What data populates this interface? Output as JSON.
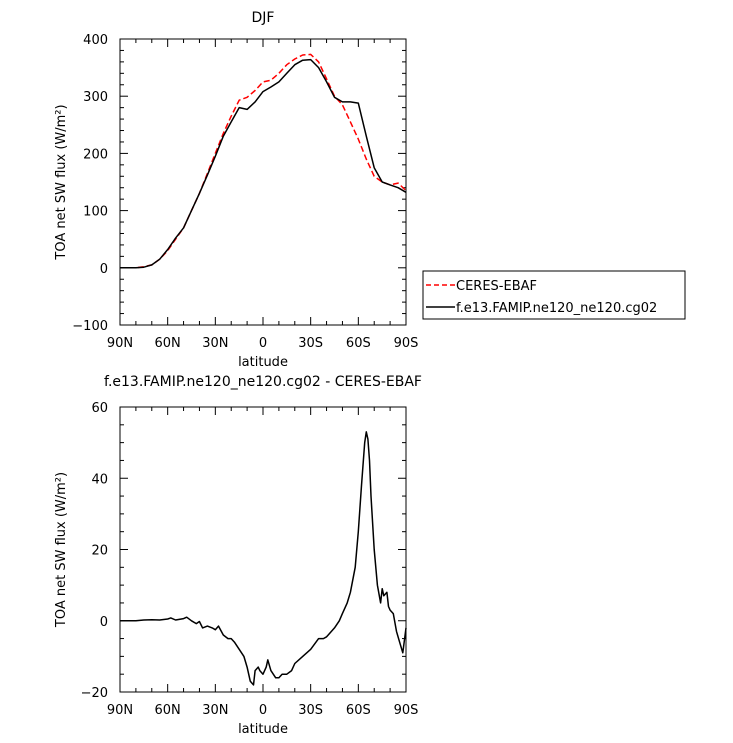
{
  "chart_data": [
    {
      "type": "line",
      "title": "DJF",
      "xlabel": "latitude",
      "ylabel": "TOA net SW flux (W/m²)",
      "xlim": [
        90,
        -90
      ],
      "ylim": [
        -100,
        400
      ],
      "x_ticks": [
        {
          "value": 90,
          "label": "90N"
        },
        {
          "value": 60,
          "label": "60N"
        },
        {
          "value": 30,
          "label": "30N"
        },
        {
          "value": 0,
          "label": "0"
        },
        {
          "value": -30,
          "label": "30S"
        },
        {
          "value": -60,
          "label": "60S"
        },
        {
          "value": -90,
          "label": "90S"
        }
      ],
      "y_ticks": [
        -100,
        0,
        100,
        200,
        300,
        400
      ],
      "legend_position": "right, outside plot",
      "series": [
        {
          "name": "CERES-EBAF",
          "color": "#ff0000",
          "dash": "dashed",
          "x": [
            90,
            85,
            80,
            75,
            70,
            65,
            60,
            55,
            50,
            45,
            40,
            35,
            30,
            25,
            20,
            15,
            10,
            5,
            0,
            -5,
            -10,
            -15,
            -20,
            -25,
            -30,
            -35,
            -40,
            -45,
            -50,
            -55,
            -60,
            -65,
            -70,
            -75,
            -80,
            -85,
            -90
          ],
          "y": [
            0,
            0,
            0,
            2,
            5,
            15,
            30,
            50,
            70,
            100,
            130,
            165,
            200,
            235,
            265,
            293,
            298,
            310,
            325,
            328,
            340,
            355,
            365,
            372,
            373,
            360,
            330,
            300,
            285,
            255,
            225,
            190,
            160,
            150,
            145,
            148,
            135
          ]
        },
        {
          "name": "f.e13.FAMIP.ne120_ne120.cg02",
          "color": "#000000",
          "dash": "solid",
          "x": [
            90,
            85,
            80,
            75,
            70,
            65,
            60,
            55,
            50,
            45,
            40,
            35,
            30,
            25,
            20,
            15,
            10,
            5,
            0,
            -5,
            -10,
            -15,
            -20,
            -25,
            -30,
            -35,
            -40,
            -45,
            -50,
            -55,
            -60,
            -65,
            -70,
            -75,
            -80,
            -85,
            -90
          ],
          "y": [
            0,
            0,
            0,
            1,
            5,
            15,
            32,
            52,
            70,
            100,
            130,
            162,
            195,
            230,
            255,
            280,
            277,
            290,
            308,
            316,
            325,
            340,
            355,
            363,
            364,
            350,
            325,
            298,
            290,
            290,
            288,
            230,
            175,
            150,
            145,
            140,
            132
          ]
        }
      ]
    },
    {
      "type": "line",
      "title": "f.e13.FAMIP.ne120_ne120.cg02 - CERES-EBAF",
      "xlabel": "latitude",
      "ylabel": "TOA net SW flux (W/m²)",
      "xlim": [
        90,
        -90
      ],
      "ylim": [
        -20,
        60
      ],
      "x_ticks": [
        {
          "value": 90,
          "label": "90N"
        },
        {
          "value": 60,
          "label": "60N"
        },
        {
          "value": 30,
          "label": "30N"
        },
        {
          "value": 0,
          "label": "0"
        },
        {
          "value": -30,
          "label": "30S"
        },
        {
          "value": -60,
          "label": "60S"
        },
        {
          "value": -90,
          "label": "90S"
        }
      ],
      "y_ticks": [
        -20,
        0,
        20,
        40,
        60
      ],
      "series": [
        {
          "color": "#000000",
          "dash": "solid",
          "x": [
            90,
            85,
            80,
            75,
            70,
            65,
            60,
            58,
            55,
            50,
            48,
            45,
            42,
            40,
            38,
            35,
            32,
            30,
            28,
            25,
            22,
            20,
            18,
            15,
            12,
            10,
            8,
            6,
            5,
            3,
            2,
            0,
            -2,
            -3,
            -5,
            -8,
            -10,
            -12,
            -15,
            -18,
            -20,
            -25,
            -30,
            -35,
            -38,
            -40,
            -45,
            -48,
            -50,
            -53,
            -55,
            -58,
            -60,
            -62,
            -64,
            -65,
            -66,
            -67,
            -68,
            -70,
            -72,
            -74,
            -75,
            -76,
            -78,
            -79,
            -80,
            -82,
            -84,
            -86,
            -88,
            -90
          ],
          "y": [
            0,
            0,
            0,
            0.2,
            0.3,
            0.2,
            0.5,
            0.8,
            0.2,
            0.6,
            1,
            0,
            -0.8,
            -0.2,
            -2,
            -1.5,
            -2,
            -2.5,
            -1.5,
            -4,
            -5,
            -5,
            -6,
            -8,
            -10,
            -13,
            -17,
            -18,
            -14,
            -13,
            -14,
            -15,
            -13,
            -11,
            -14,
            -16,
            -16,
            -15,
            -15,
            -14,
            -12,
            -10,
            -8,
            -5,
            -5,
            -4.5,
            -2,
            0,
            2,
            5,
            8,
            15,
            25,
            38,
            50,
            53,
            51,
            45,
            35,
            20,
            10,
            5,
            9,
            7,
            8,
            4,
            3,
            2,
            -3,
            -6,
            -9,
            -2
          ]
        }
      ]
    }
  ],
  "legend": [
    {
      "label": "CERES-EBAF",
      "color": "#ff0000",
      "dash": "dashed"
    },
    {
      "label": "f.e13.FAMIP.ne120_ne120.cg02",
      "color": "#000000",
      "dash": "solid"
    }
  ]
}
